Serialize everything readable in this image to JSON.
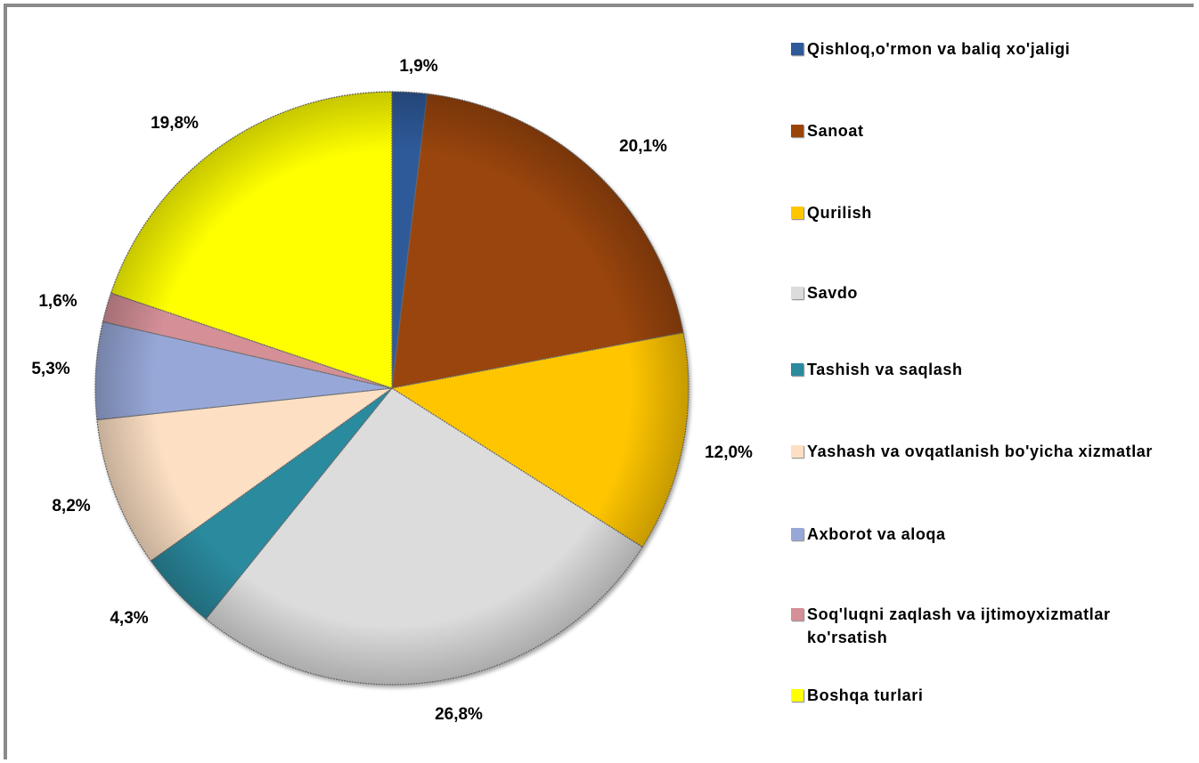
{
  "chart_data": {
    "type": "pie",
    "categories": [
      "Qishloq,o'rmon va baliq xo'jaligi",
      "Sanoat",
      "Qurilish",
      "Savdo",
      "Tashish va saqlash",
      "Yashash va ovqatlanish  bo'yicha xizmatlar",
      "Axborot va aloqa",
      "Soq'luqni zaqlash va ijtimoyxizmatlar ko'rsatish",
      "Boshqa turlari"
    ],
    "values": [
      1.9,
      20.1,
      12.0,
      26.8,
      4.3,
      8.2,
      5.3,
      1.6,
      19.8
    ],
    "data_labels": [
      "1,9%",
      "20,1%",
      "12,0%",
      "26,8%",
      "4,3%",
      "8,2%",
      "5,3%",
      "1,6%",
      "19,8%"
    ],
    "colors": [
      "#2e5a9a",
      "#9a4508",
      "#ffc600",
      "#dcdcdc",
      "#2b8a9e",
      "#fde0c4",
      "#97a8d8",
      "#d48f97",
      "#ffff00"
    ],
    "title": "",
    "legend_placement": "right",
    "start_angle": "top, clockwise"
  }
}
